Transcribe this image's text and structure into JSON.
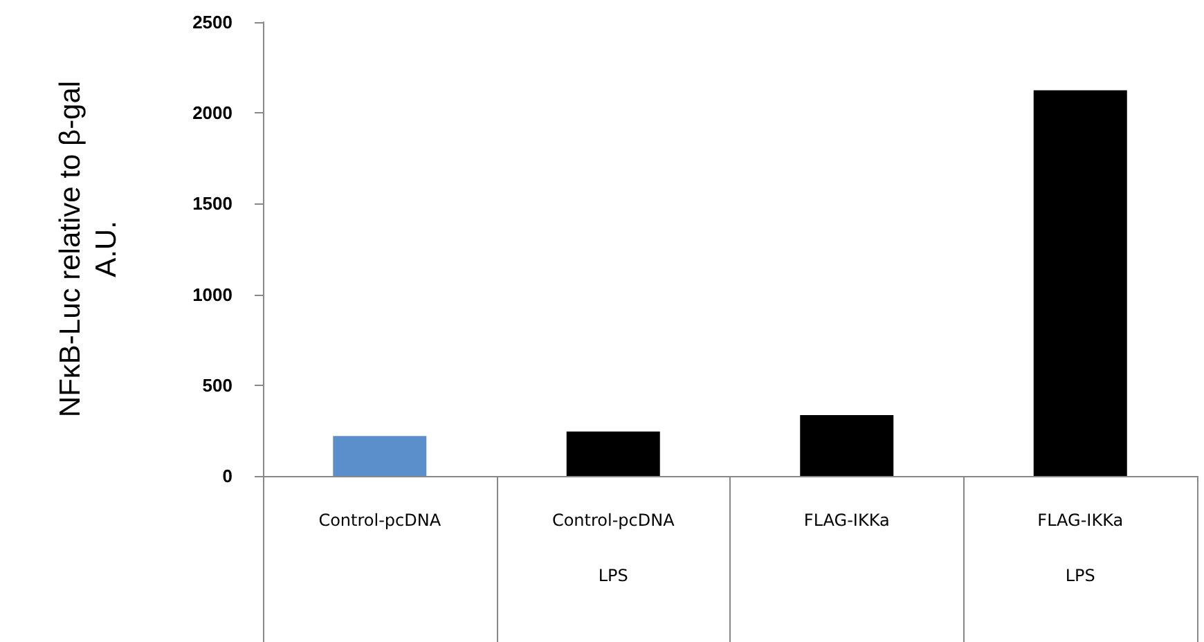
{
  "chart_data": {
    "type": "bar",
    "ylabel": "NFκB-Luc relative to β-gal\nA.U.",
    "categories": [
      "Control-pcDNA",
      "Control-pcDNA\n\nLPS",
      "FLAG-IKKa",
      "FLAG-IKKa\n\nLPS"
    ],
    "values": [
      220,
      245,
      335,
      2125
    ],
    "colors": [
      "#5b8fcc",
      "#000000",
      "#000000",
      "#000000"
    ],
    "ylim": [
      0,
      2500
    ],
    "yticks": [
      0,
      500,
      1000,
      1500,
      2000,
      2500
    ],
    "grid": false
  }
}
